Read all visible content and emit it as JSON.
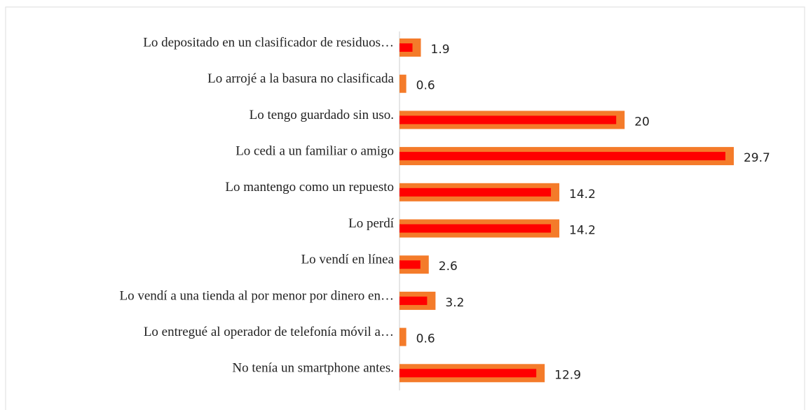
{
  "chart_data": {
    "type": "bar",
    "orientation": "horizontal",
    "categories": [
      "Lo depositado en un clasificador de residuos…",
      "Lo arrojé a la basura no clasificada",
      "Lo tengo guardado sin uso.",
      "Lo cedi a un familiar o amigo",
      "Lo mantengo como un repuesto",
      "Lo perdí",
      "Lo vendí en línea",
      "Lo vendí a una tienda al por menor por dinero en…",
      "Lo entregué al operador de telefonía móvil a…",
      "No tenía un smartphone antes."
    ],
    "values": [
      1.9,
      0.6,
      20,
      29.7,
      14.2,
      14.2,
      2.6,
      3.2,
      0.6,
      12.9
    ],
    "color": "#f47b2a",
    "inner_color": "#ff0000"
  }
}
